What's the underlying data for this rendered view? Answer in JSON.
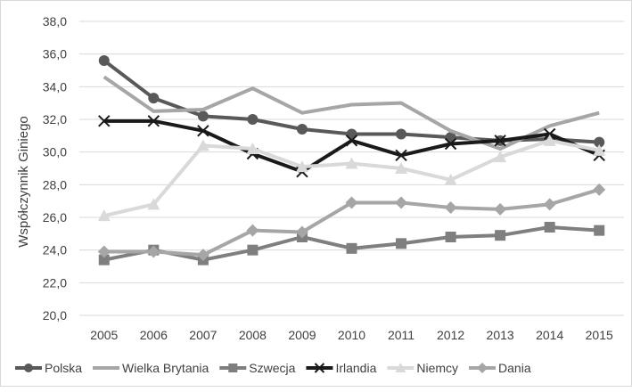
{
  "chart_data": {
    "type": "line",
    "title": "",
    "xlabel": "",
    "ylabel": "Współczynnik Giniego",
    "x": [
      "2005",
      "2006",
      "2007",
      "2008",
      "2009",
      "2010",
      "2011",
      "2012",
      "2013",
      "2014",
      "2015"
    ],
    "ylim": [
      20,
      38
    ],
    "yticks": [
      "20,0",
      "22,0",
      "24,0",
      "26,0",
      "28,0",
      "30,0",
      "32,0",
      "34,0",
      "36,0",
      "38,0"
    ],
    "grid": "horizontal",
    "legend_position": "bottom",
    "series": [
      {
        "name": "Polska",
        "marker": "circle",
        "color": "#595959",
        "values": [
          35.6,
          33.3,
          32.2,
          32.0,
          31.4,
          31.1,
          31.1,
          30.9,
          30.7,
          30.8,
          30.6
        ]
      },
      {
        "name": "Wielka Brytania",
        "marker": "none",
        "color": "#a6a6a6",
        "values": [
          34.6,
          32.5,
          32.6,
          33.9,
          32.4,
          32.9,
          33.0,
          31.3,
          30.2,
          31.6,
          32.4
        ]
      },
      {
        "name": "Szwecja",
        "marker": "square",
        "color": "#7f7f7f",
        "values": [
          23.4,
          24.0,
          23.4,
          24.0,
          24.8,
          24.1,
          24.4,
          24.8,
          24.9,
          25.4,
          25.2
        ]
      },
      {
        "name": "Irlandia",
        "marker": "x",
        "color": "#1a1a1a",
        "values": [
          31.9,
          31.9,
          31.3,
          29.9,
          28.8,
          30.7,
          29.8,
          30.5,
          30.7,
          31.1,
          29.8
        ]
      },
      {
        "name": "Niemcy",
        "marker": "triangle",
        "color": "#d9d9d9",
        "values": [
          26.1,
          26.8,
          30.4,
          30.2,
          29.1,
          29.3,
          29.0,
          28.3,
          29.7,
          30.7,
          30.1
        ]
      },
      {
        "name": "Dania",
        "marker": "diamond",
        "color": "#a6a6a6",
        "values": [
          23.9,
          23.9,
          23.7,
          25.2,
          25.1,
          26.9,
          26.9,
          26.6,
          26.5,
          26.8,
          27.7
        ]
      }
    ]
  }
}
